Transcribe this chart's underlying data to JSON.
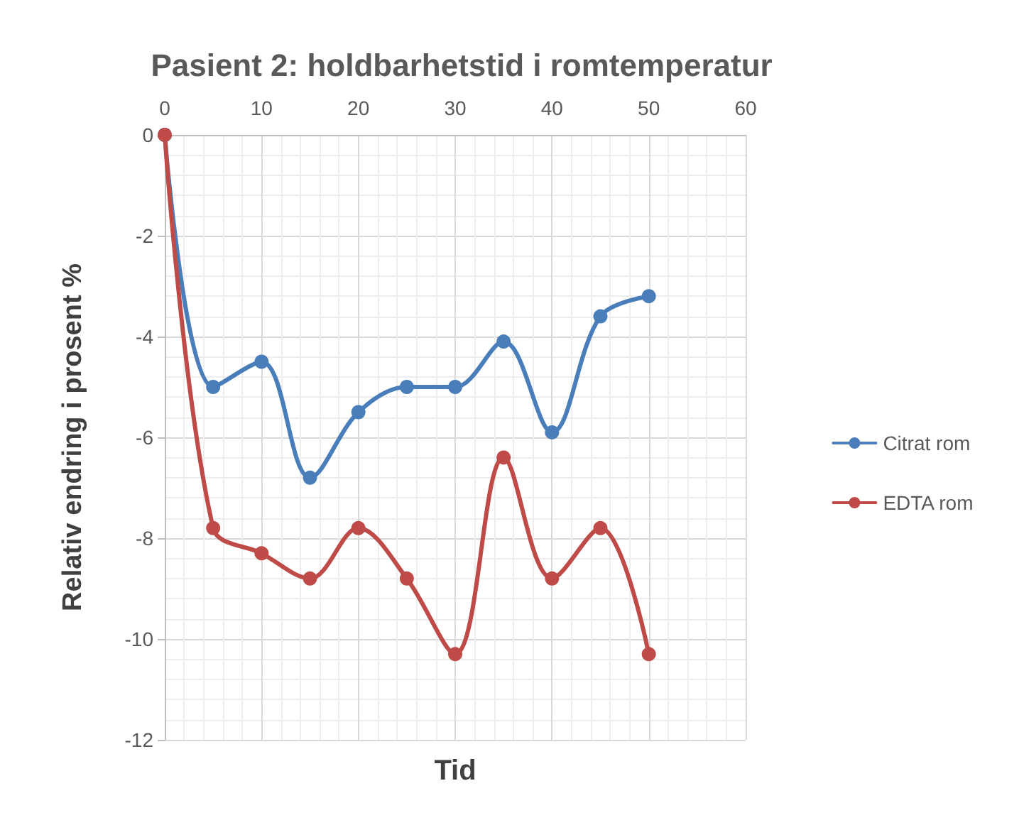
{
  "chart_data": {
    "type": "line",
    "title": "Pasient 2: holdbarhetstid i romtemperatur",
    "xlabel": "Tid",
    "ylabel": "Relativ endring i prosent %",
    "x": [
      0,
      5,
      10,
      15,
      20,
      25,
      30,
      35,
      40,
      45,
      50
    ],
    "series": [
      {
        "name": "Citrat rom",
        "color": "#4a7ebb",
        "values": [
          0,
          -5.0,
          -4.5,
          -6.8,
          -5.5,
          -5.0,
          -5.0,
          -4.1,
          -5.9,
          -3.6,
          -3.2
        ]
      },
      {
        "name": "EDTA rom",
        "color": "#be4b48",
        "values": [
          0,
          -7.8,
          -8.3,
          -8.8,
          -7.8,
          -8.8,
          -10.3,
          -6.4,
          -8.8,
          -7.8,
          -10.3
        ]
      }
    ],
    "xlim": [
      0,
      60
    ],
    "xticks": [
      0,
      10,
      20,
      30,
      40,
      50,
      60
    ],
    "ylim": [
      -12,
      0
    ],
    "yticks": [
      -12,
      -10,
      -8,
      -6,
      -4,
      -2,
      0
    ],
    "grid": true,
    "legend": "right",
    "marker": "circle",
    "line_style": "solid"
  }
}
